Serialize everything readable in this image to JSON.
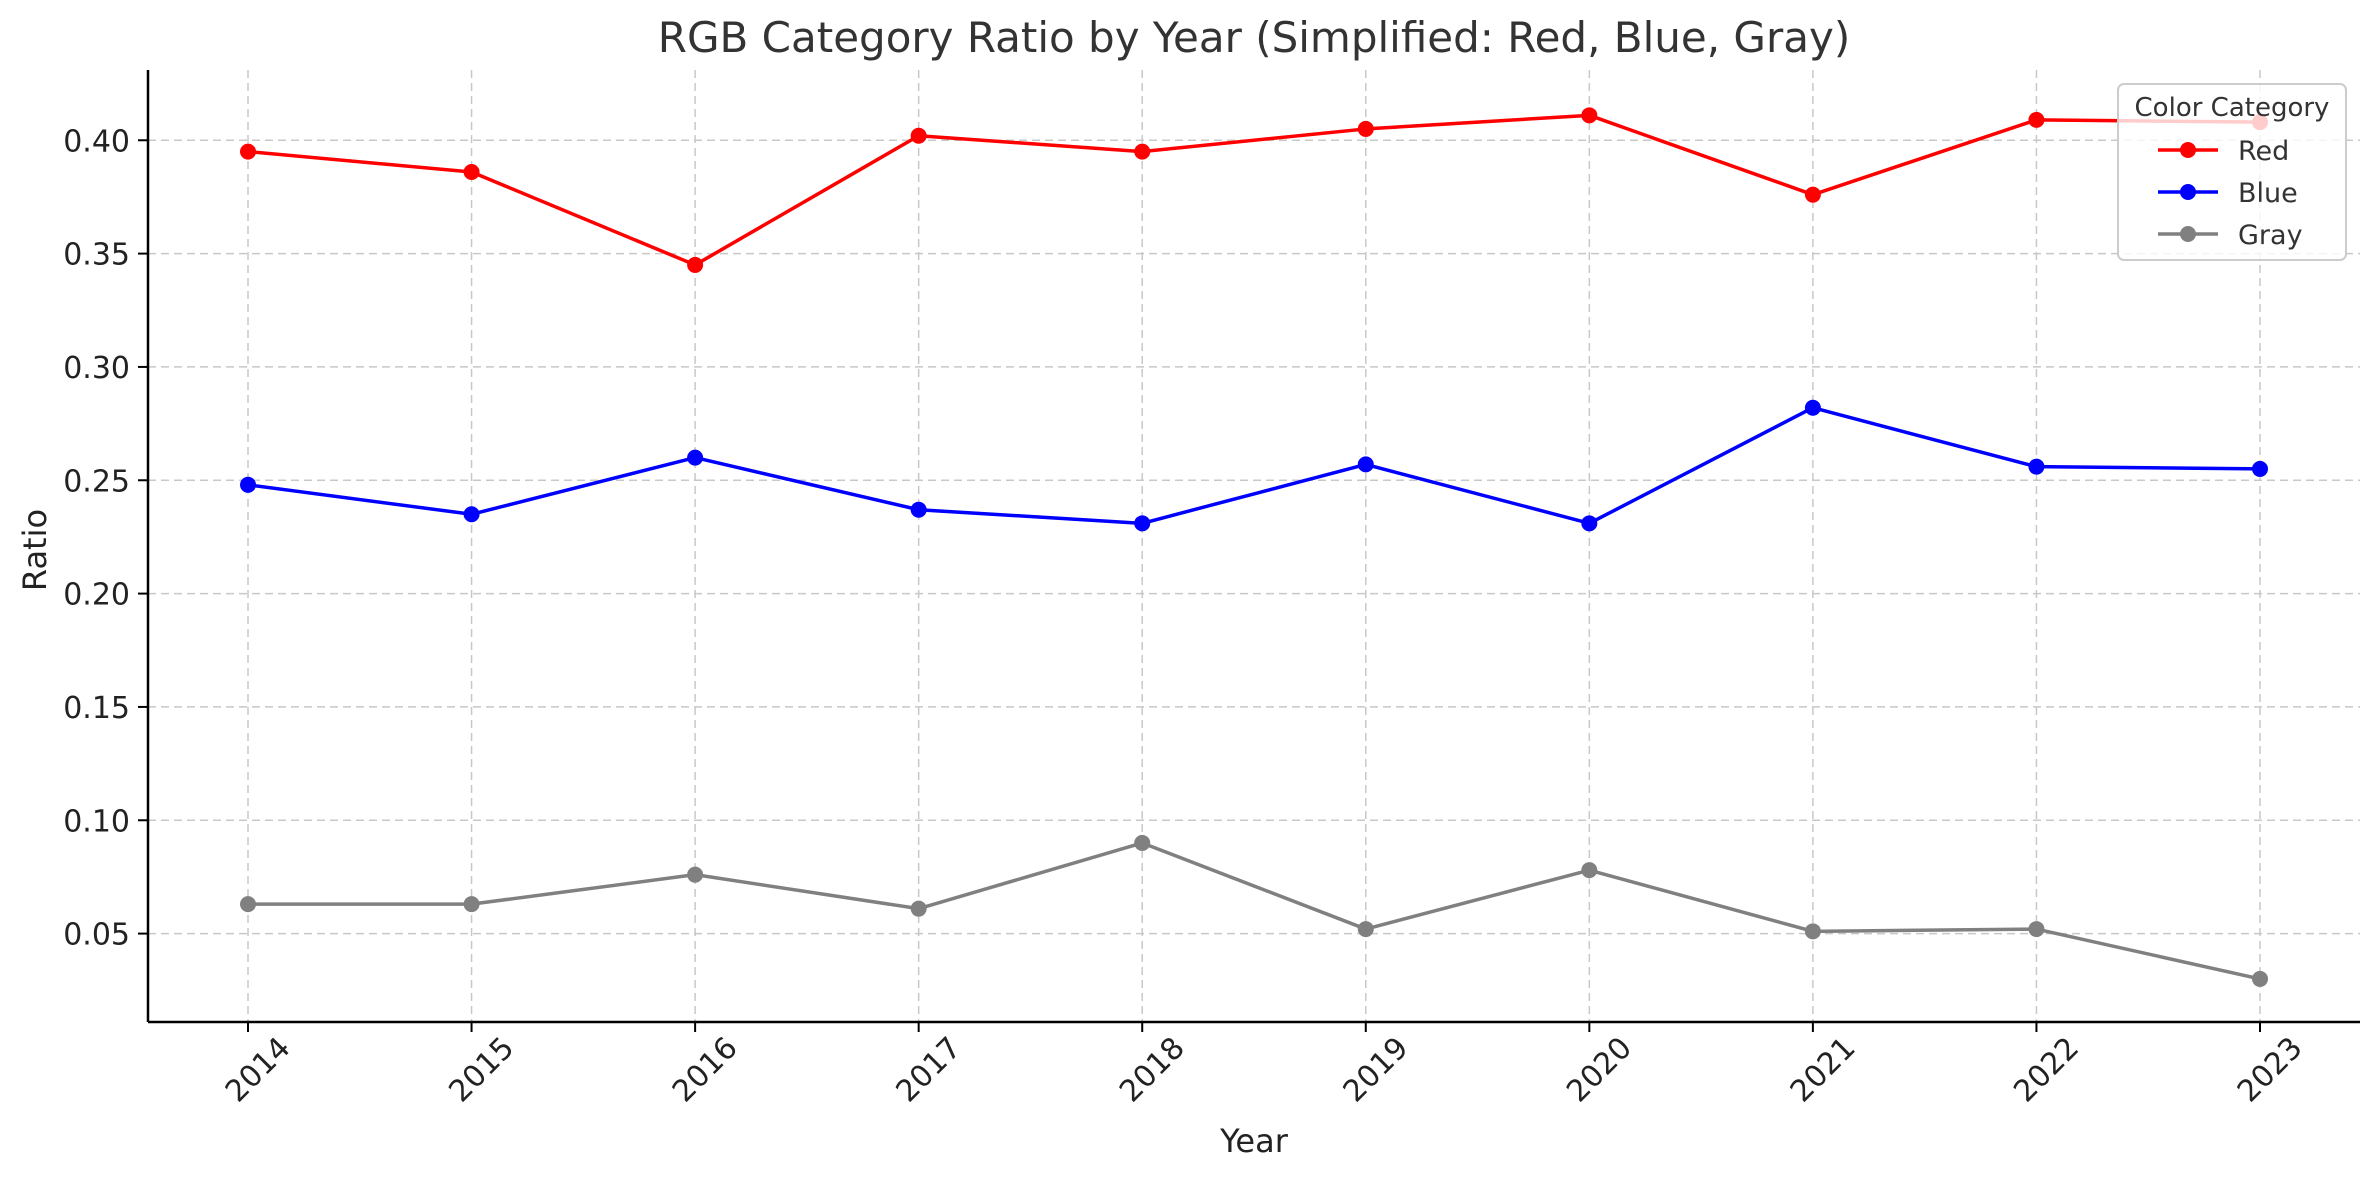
{
  "chart_data": {
    "type": "line",
    "title": "RGB Category Ratio by Year (Simplified: Red, Blue, Gray)",
    "xlabel": "Year",
    "ylabel": "Ratio",
    "x": [
      "2014",
      "2015",
      "2016",
      "2017",
      "2018",
      "2019",
      "2020",
      "2021",
      "2022",
      "2023"
    ],
    "y_ticks": [
      "0.05",
      "0.10",
      "0.15",
      "0.20",
      "0.25",
      "0.30",
      "0.35",
      "0.40"
    ],
    "ylim": [
      0.011,
      0.431
    ],
    "grid": true,
    "legend": {
      "title": "Color Category",
      "placement": "top-right"
    },
    "series": [
      {
        "name": "Red",
        "color": "#ff0000",
        "values": [
          0.395,
          0.386,
          0.345,
          0.402,
          0.395,
          0.405,
          0.411,
          0.376,
          0.409,
          0.408
        ]
      },
      {
        "name": "Blue",
        "color": "#0000ff",
        "values": [
          0.248,
          0.235,
          0.26,
          0.237,
          0.231,
          0.257,
          0.231,
          0.282,
          0.256,
          0.255
        ]
      },
      {
        "name": "Gray",
        "color": "#808080",
        "values": [
          0.063,
          0.063,
          0.076,
          0.061,
          0.09,
          0.052,
          0.078,
          0.051,
          0.052,
          0.03
        ]
      }
    ]
  }
}
